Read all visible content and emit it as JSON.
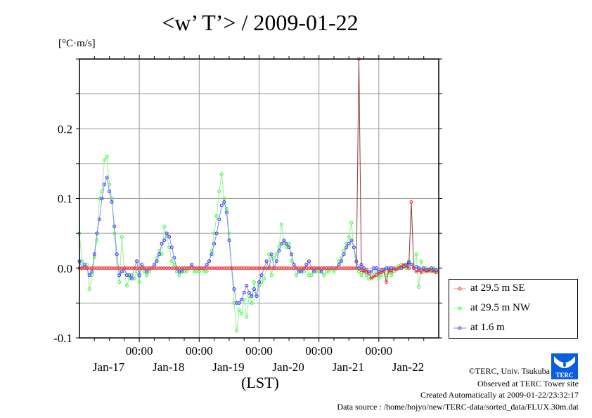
{
  "chart_data": {
    "type": "line",
    "title": "<w’ T’> / 2009-01-22",
    "ylabel": "[°C·m/s]",
    "xlabel": "(LST)",
    "xlim": [
      0,
      144
    ],
    "ylim": [
      -0.1,
      0.3
    ],
    "y_ticks": [
      -0.1,
      0.0,
      0.1,
      0.2
    ],
    "y_tick_labels": [
      "-0.1",
      "0.0",
      "0.1",
      "0.2"
    ],
    "y_grid_step": 0.05,
    "x_grid_hours": [
      24,
      48,
      72,
      96,
      120
    ],
    "x_tick_labels": [
      "00:00",
      "00:00",
      "00:00",
      "00:00",
      "00:00"
    ],
    "date_labels": [
      "Jan-17",
      "Jan-18",
      "Jan-19",
      "Jan-20",
      "Jan-21",
      "Jan-22"
    ],
    "grid": true,
    "legend_position": "right-bottom-outside",
    "series": [
      {
        "name": "at 29.5 m SE",
        "color": "#ff3333",
        "line_color": "#8a3a3a",
        "values": [
          0,
          0,
          0,
          0,
          0,
          0,
          0,
          0,
          0,
          0,
          0,
          0,
          0,
          0,
          0,
          0,
          0,
          0,
          0,
          0,
          0,
          0,
          0,
          0,
          0,
          0,
          0,
          0,
          0,
          0,
          0,
          0,
          0,
          0,
          0,
          0,
          0,
          0,
          0,
          0,
          0,
          0,
          0,
          0,
          0,
          0,
          0,
          0,
          0,
          0,
          0,
          0,
          0,
          0,
          0,
          0,
          0,
          0,
          0,
          0,
          0,
          0,
          0,
          0,
          0,
          0,
          0,
          0,
          0,
          0,
          0,
          0,
          0,
          0,
          0,
          0,
          0,
          0,
          0,
          0,
          0,
          0,
          0,
          0,
          0,
          0,
          0,
          0,
          0,
          0,
          0,
          0,
          0,
          0,
          0,
          0,
          0,
          0,
          0,
          0,
          0,
          0,
          0,
          0,
          0,
          0,
          0,
          0,
          0,
          0,
          0,
          0,
          0.3,
          -0.003,
          -0.005,
          -0.002,
          -0.008,
          -0.015,
          -0.012,
          -0.01,
          -0.008,
          -0.006,
          -0.004,
          -0.02,
          -0.003,
          -0.005,
          0.0,
          -0.002,
          0.0,
          0.002,
          0.005,
          0.003,
          0.0,
          0.095,
          0.0,
          -0.005,
          -0.003,
          -0.006,
          -0.002,
          -0.005,
          -0.003,
          -0.004,
          -0.005,
          -0.006
        ]
      },
      {
        "name": "at 29.5 m NW",
        "color": "#33ff33",
        "line_color": "#99f099",
        "values": [
          0.05,
          0.01,
          0.0,
          0.005,
          -0.03,
          -0.01,
          0.015,
          0.04,
          0.1,
          0.11,
          0.155,
          0.16,
          0.12,
          0.1,
          0.05,
          0.0,
          -0.02,
          0.045,
          -0.005,
          -0.025,
          -0.015,
          -0.01,
          -0.015,
          -0.005,
          -0.02,
          0.0,
          -0.005,
          -0.01,
          -0.005,
          0.0,
          0.0,
          0.015,
          0.025,
          0.02,
          0.06,
          0.045,
          0.03,
          0.01,
          0.005,
          -0.005,
          -0.01,
          0.0,
          -0.005,
          -0.005,
          0.0,
          0.005,
          -0.005,
          -0.005,
          -0.005,
          0.0,
          -0.005,
          -0.005,
          0.01,
          0.025,
          0.05,
          0.075,
          0.11,
          0.135,
          0.1,
          0.085,
          0.05,
          0.0,
          -0.05,
          -0.09,
          -0.06,
          -0.065,
          -0.045,
          -0.07,
          -0.04,
          -0.05,
          -0.02,
          -0.04,
          -0.025,
          -0.02,
          -0.015,
          0.0,
          0.02,
          -0.01,
          0.015,
          0.02,
          0.03,
          0.063,
          0.035,
          0.03,
          0.035,
          0.01,
          0.0,
          -0.01,
          -0.005,
          0.0,
          -0.005,
          0.005,
          -0.01,
          -0.01,
          0.0,
          -0.005,
          -0.005,
          -0.005,
          -0.01,
          -0.005,
          -0.005,
          0.0,
          -0.005,
          0.0,
          0.01,
          0.015,
          0.025,
          0.035,
          0.045,
          0.065,
          0.03,
          0.0,
          -0.005,
          -0.01,
          -0.005,
          -0.01,
          -0.015,
          -0.012,
          -0.01,
          -0.005,
          -0.015,
          -0.01,
          -0.005,
          -0.01,
          -0.005,
          -0.01,
          -0.005,
          0.0,
          0.003,
          0.005,
          0.003,
          0.0,
          0.01,
          0.005,
          0.0,
          0.02,
          -0.027,
          0.01,
          -0.005,
          0.0,
          -0.005,
          -0.003,
          0.0,
          -0.005
        ]
      },
      {
        "name": "at 1.6 m",
        "color": "#3333ff",
        "line_color": "#8888ff",
        "values": [
          0.01,
          0.0,
          0.005,
          0.0,
          -0.01,
          -0.005,
          0.02,
          0.05,
          0.07,
          0.1,
          0.12,
          0.13,
          0.11,
          0.095,
          0.06,
          0.02,
          -0.01,
          -0.005,
          0.0,
          -0.01,
          -0.01,
          -0.015,
          0.0,
          0.01,
          -0.01,
          0.005,
          0.0,
          -0.005,
          0.0,
          0.0,
          0.005,
          0.01,
          0.02,
          0.035,
          0.04,
          0.05,
          0.045,
          0.03,
          0.015,
          0.0,
          -0.005,
          -0.005,
          0.0,
          0.0,
          0.0,
          0.005,
          0.0,
          0.0,
          0.0,
          0.0,
          0.0,
          0.005,
          0.01,
          0.02,
          0.035,
          0.05,
          0.07,
          0.09,
          0.095,
          0.08,
          0.04,
          0.0,
          -0.03,
          -0.05,
          -0.05,
          -0.045,
          -0.035,
          -0.025,
          -0.035,
          -0.04,
          -0.03,
          -0.04,
          -0.02,
          -0.01,
          0.0,
          0.01,
          0.0,
          0.02,
          0.0,
          0.01,
          0.025,
          0.035,
          0.04,
          0.035,
          0.03,
          0.02,
          0.005,
          0.0,
          -0.005,
          -0.005,
          0.0,
          0.005,
          0.01,
          0.0,
          -0.005,
          0.0,
          0.0,
          -0.005,
          0.0,
          0.0,
          0.0,
          0.0,
          0.0,
          0.0,
          0.005,
          0.01,
          0.02,
          0.03,
          0.035,
          0.04,
          0.03,
          0.01,
          0.0,
          0.005,
          0.0,
          -0.005,
          -0.005,
          -0.005,
          0.0,
          0.0,
          -0.005,
          -0.003,
          -0.002,
          0.0,
          0.0,
          0.0,
          0.0,
          -0.002,
          0.0,
          0.0,
          0.003,
          0.005,
          0.008,
          0.005,
          0.0,
          0.002,
          0.0,
          -0.002,
          0.0,
          -0.003,
          -0.002,
          0.0,
          -0.002,
          -0.003
        ]
      }
    ]
  },
  "footer": {
    "copyright": "©TERC, Univ. Tsukuba",
    "observed": "Observed at TERC Tower site",
    "created": "Created Automatically at 2009-01-22/23:32:17",
    "source": "Data source : /home/hojyo/new/TERC-data/sorted_data/FLUX.30m.dat"
  },
  "logo": {
    "text": "TERC",
    "color": "#0a5fe0"
  }
}
